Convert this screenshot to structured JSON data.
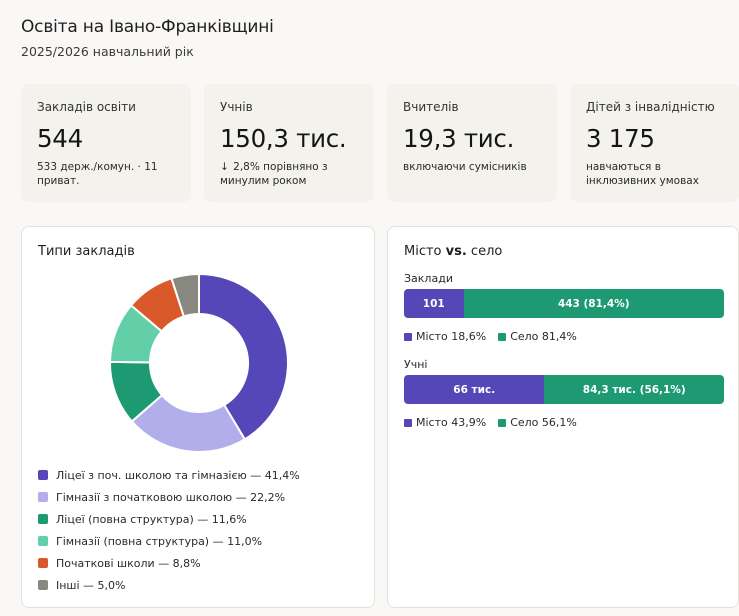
{
  "header": {
    "title": "Освіта на Івано-Франківщині",
    "subtitle": "2025/2026 навчальний рік"
  },
  "kpis": [
    {
      "label": "Закладів освіти",
      "value": "544",
      "note": "533 держ./комун. · 11 приват."
    },
    {
      "label": "Учнів",
      "value": "150,3 тис.",
      "arrow": "↓",
      "note": "2,8% порівняно з минулим роком"
    },
    {
      "label": "Вчителів",
      "value": "19,3 тис.",
      "note": "включаючи сумісників"
    },
    {
      "label": "Дітей з інвалідністю",
      "value": "3 175",
      "note": "навчаються в інклюзивних умовах"
    }
  ],
  "types_card": {
    "title": "Типи закладів",
    "legend": [
      "Ліцеї з поч. школою та гімназією — 41,4%",
      "Гімназії з початковою школою — 22,2%",
      "Ліцеї (повна структура) — 11,6%",
      "Гімназії (повна структура) — 11,0%",
      "Початкові школи — 8,8%",
      "Інші — 5,0%"
    ]
  },
  "city_card": {
    "title_a": "Місто ",
    "title_b": "vs.",
    "title_c": " село",
    "schools": {
      "label": "Заклади",
      "city_value": "101",
      "village_value": "443 (81,4%)",
      "city_legend": "Місто 18,6%",
      "village_legend": "Село 81,4%"
    },
    "students": {
      "label": "Учні",
      "city_value": "66 тис.",
      "village_value": "84,3 тис. (56,1%)",
      "city_legend": "Місто 43,9%",
      "village_legend": "Село 56,1%"
    }
  },
  "colors": {
    "city": "#5647b8",
    "village": "#1e9a72",
    "slices": [
      "#5647b8",
      "#b2aeec",
      "#1e9a72",
      "#63cfa8",
      "#d9592b",
      "#888780"
    ]
  },
  "chart_data": [
    {
      "type": "pie",
      "title": "Типи закладів",
      "categories": [
        "Ліцеї з поч. школою та гімназією",
        "Гімназії з початковою школою",
        "Ліцеї (повна структура)",
        "Гімназії (повна структура)",
        "Початкові школи",
        "Інші"
      ],
      "values": [
        41.4,
        22.2,
        11.6,
        11.0,
        8.8,
        5.0
      ]
    },
    {
      "type": "bar",
      "title": "Місто vs. село",
      "categories": [
        "Заклади",
        "Учні"
      ],
      "series": [
        {
          "name": "Місто",
          "values": [
            18.6,
            43.9
          ]
        },
        {
          "name": "Село",
          "values": [
            81.4,
            56.1
          ]
        }
      ]
    }
  ]
}
